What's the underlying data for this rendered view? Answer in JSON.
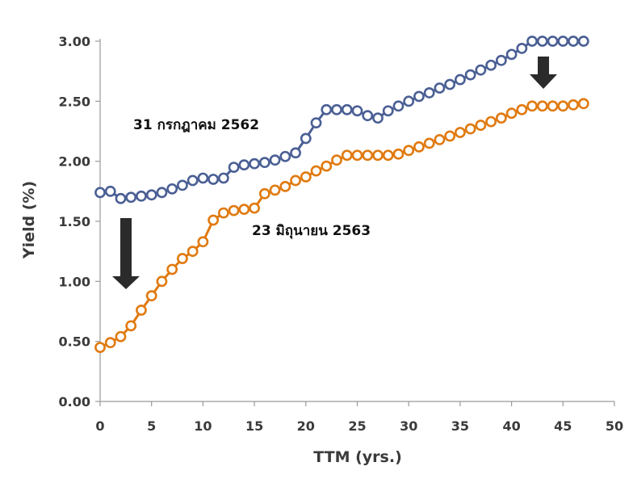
{
  "chart_data": {
    "type": "line",
    "xlabel": "TTM (yrs.)",
    "ylabel": "Yield (%)",
    "xlim": [
      0,
      50
    ],
    "ylim": [
      0,
      3.0
    ],
    "x_ticks": [
      "0",
      "5",
      "10",
      "15",
      "20",
      "25",
      "30",
      "35",
      "40",
      "45",
      "50"
    ],
    "y_ticks": [
      "0.00",
      "0.50",
      "1.00",
      "1.50",
      "2.00",
      "2.50",
      "3.00"
    ],
    "grid": false,
    "legend": "none",
    "series": [
      {
        "name": "31 กรกฎาคม 2562",
        "color": "#4a5f94",
        "x": [
          0,
          1,
          2,
          3,
          4,
          5,
          6,
          7,
          8,
          9,
          10,
          11,
          12,
          13,
          14,
          15,
          16,
          17,
          18,
          19,
          20,
          21,
          22,
          23,
          24,
          25,
          26,
          27,
          28,
          29,
          30,
          31,
          32,
          33,
          34,
          35,
          36,
          37,
          38,
          39,
          40,
          41,
          42,
          43,
          44,
          45,
          46,
          47
        ],
        "y": [
          1.74,
          1.75,
          1.69,
          1.7,
          1.71,
          1.72,
          1.74,
          1.77,
          1.8,
          1.84,
          1.86,
          1.85,
          1.86,
          1.95,
          1.97,
          1.98,
          1.99,
          2.01,
          2.04,
          2.07,
          2.19,
          2.32,
          2.43,
          2.43,
          2.43,
          2.42,
          2.38,
          2.36,
          2.42,
          2.46,
          2.5,
          2.54,
          2.57,
          2.61,
          2.64,
          2.68,
          2.72,
          2.76,
          2.8,
          2.84,
          2.89,
          2.94,
          3.0,
          3.0,
          3.0,
          3.0,
          3.0,
          3.0
        ]
      },
      {
        "name": "23 มิถุนายน 2563",
        "color": "#e07a10",
        "x": [
          0,
          1,
          2,
          3,
          4,
          5,
          6,
          7,
          8,
          9,
          10,
          11,
          12,
          13,
          14,
          15,
          16,
          17,
          18,
          19,
          20,
          21,
          22,
          23,
          24,
          25,
          26,
          27,
          28,
          29,
          30,
          31,
          32,
          33,
          34,
          35,
          36,
          37,
          38,
          39,
          40,
          41,
          42,
          43,
          44,
          45,
          46,
          47
        ],
        "y": [
          0.45,
          0.49,
          0.54,
          0.63,
          0.76,
          0.88,
          1.0,
          1.1,
          1.19,
          1.25,
          1.33,
          1.51,
          1.57,
          1.59,
          1.6,
          1.61,
          1.73,
          1.76,
          1.79,
          1.84,
          1.87,
          1.92,
          1.96,
          2.01,
          2.05,
          2.05,
          2.05,
          2.05,
          2.05,
          2.06,
          2.09,
          2.12,
          2.15,
          2.18,
          2.21,
          2.24,
          2.27,
          2.3,
          2.33,
          2.36,
          2.4,
          2.43,
          2.46,
          2.46,
          2.46,
          2.46,
          2.47,
          2.48
        ]
      }
    ],
    "annotations": [
      {
        "text": "31 กรกฎาคม 2562"
      },
      {
        "text": "23 มิถุนายน 2563"
      }
    ]
  }
}
